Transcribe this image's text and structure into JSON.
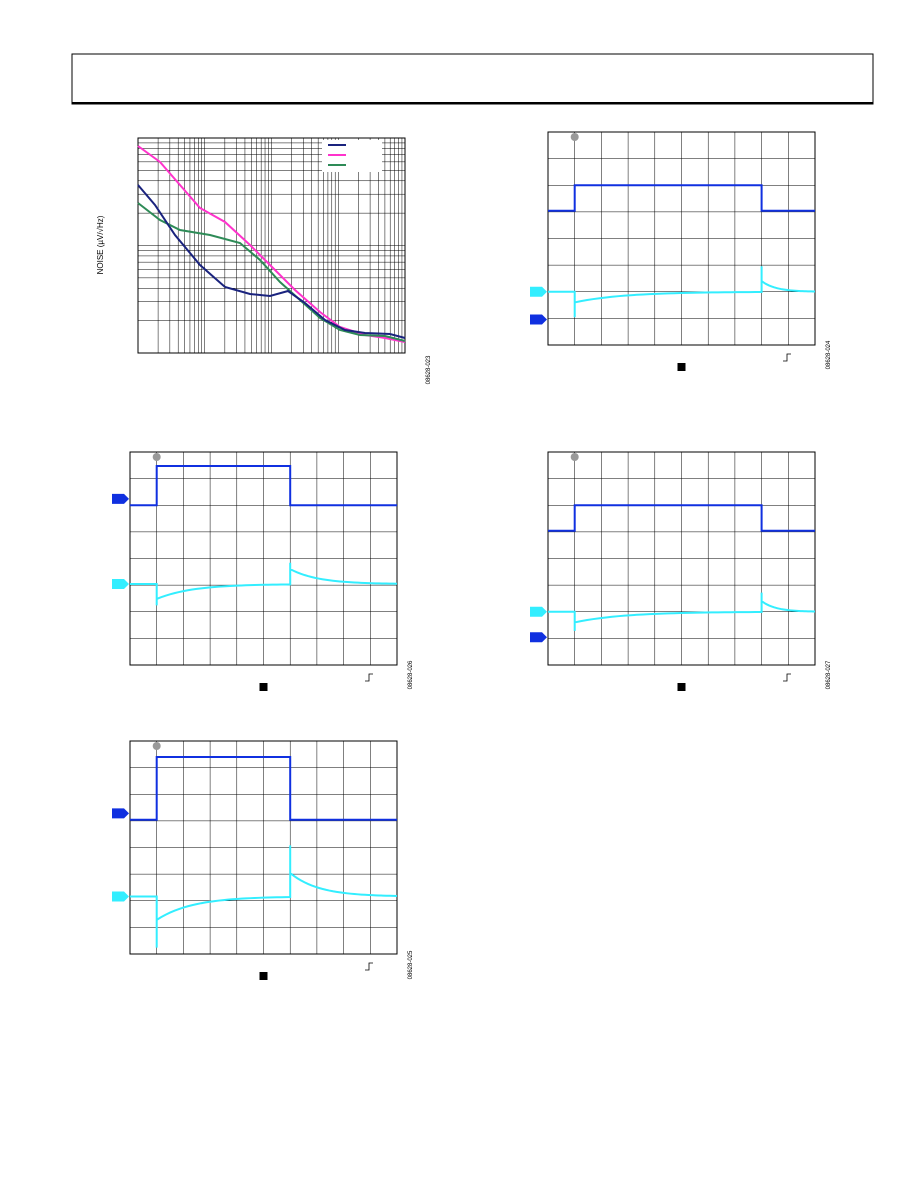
{
  "figures": [
    {
      "code": "08628-023",
      "y_label": "NOISE (µV/√Hz)"
    },
    {
      "code": "08628-024"
    },
    {
      "code": "08628-026"
    },
    {
      "code": "08628-027"
    },
    {
      "code": "08628-025"
    }
  ]
}
